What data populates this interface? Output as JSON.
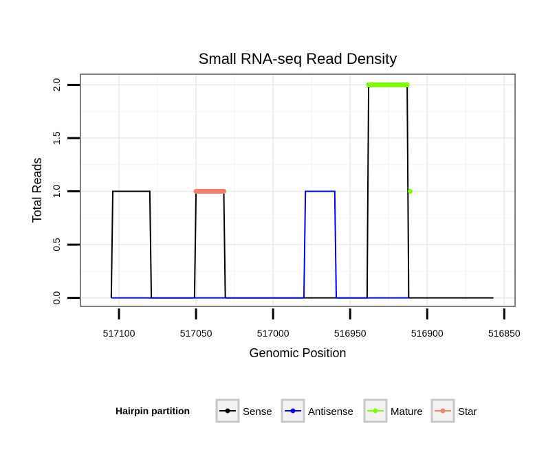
{
  "chart_data": {
    "type": "line",
    "title": "Small RNA-seq Read Density",
    "xlabel": "Genomic Position",
    "ylabel": "Total Reads",
    "x_reversed": true,
    "xlim": [
      517125,
      516843
    ],
    "ylim": [
      -0.08,
      2.1
    ],
    "x_ticks": [
      517100,
      517050,
      517000,
      516950,
      516900,
      516850
    ],
    "x_tick_labels": [
      "517100",
      "517050",
      "517000",
      "516950",
      "516900",
      "516850"
    ],
    "y_ticks": [
      0.0,
      0.5,
      1.0,
      1.5,
      2.0
    ],
    "y_tick_labels": [
      "0.0",
      "0.5",
      "1.0",
      "1.5",
      "2.0"
    ],
    "grid": true,
    "legend_title": "Hairpin partition",
    "legend_position": "bottom",
    "series": [
      {
        "name": "Sense",
        "color": "#000000",
        "x": [
          517105,
          517104,
          517080,
          517079,
          517051,
          517050,
          517032,
          517031,
          516939,
          516938,
          516913,
          516912,
          516857
        ],
        "y": [
          0,
          1,
          1,
          0,
          0,
          1,
          1,
          0,
          0,
          2,
          2,
          0,
          0
        ]
      },
      {
        "name": "Antisense",
        "color": "#0000ff",
        "x": [
          517105,
          516980,
          516979,
          516960,
          516959,
          516912
        ],
        "y": [
          0,
          0,
          1,
          1,
          0,
          0
        ]
      },
      {
        "name": "Mature",
        "color": "#7fff00",
        "x": [
          516938,
          516925,
          516913,
          516911
        ],
        "y": [
          2,
          2,
          2,
          1
        ]
      },
      {
        "name": "Star",
        "color": "#f08070",
        "x": [
          517050,
          517041,
          517032
        ],
        "y": [
          1,
          1,
          1
        ]
      }
    ]
  }
}
